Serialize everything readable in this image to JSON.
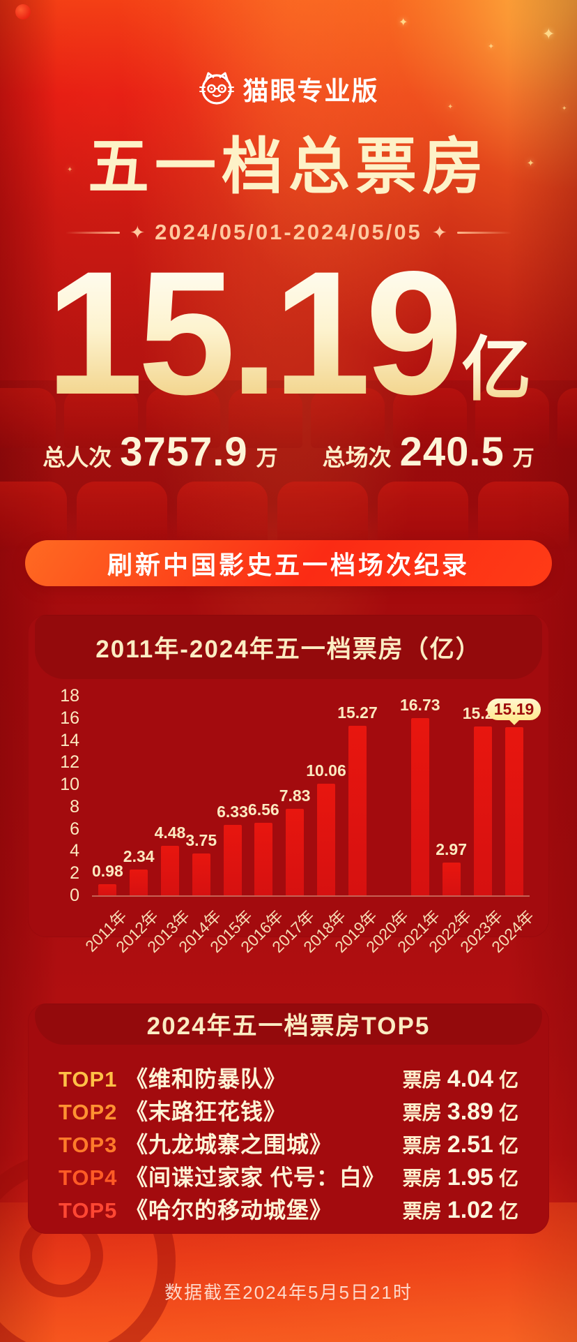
{
  "page": {
    "brand": "猫眼专业版",
    "title": "五一档总票房",
    "date_range": "2024/05/01-2024/05/05",
    "total_box_office": "15.19",
    "total_box_office_unit": "亿",
    "stats": [
      {
        "label": "总人次",
        "value": "3757.9",
        "unit": "万"
      },
      {
        "label": "总场次",
        "value": "240.5",
        "unit": "万"
      }
    ],
    "banner": "刷新中国影史五一档场次纪录",
    "footer": "数据截至2024年5月5日21时"
  },
  "chart_data": {
    "type": "bar",
    "title": "2011年-2024年五一档票房（亿）",
    "categories": [
      "2011年",
      "2012年",
      "2013年",
      "2014年",
      "2015年",
      "2016年",
      "2017年",
      "2018年",
      "2019年",
      "2020年",
      "2021年",
      "2022年",
      "2023年",
      "2024年"
    ],
    "values": [
      0.98,
      2.34,
      4.48,
      3.75,
      6.33,
      6.56,
      7.83,
      10.06,
      15.27,
      null,
      16.73,
      2.97,
      15.21,
      15.19
    ],
    "highlight_index": 13,
    "highlight_label": "15.19",
    "xlabel": "",
    "ylabel": "",
    "ylim": [
      0,
      18
    ],
    "yticks": [
      0,
      2,
      4,
      6,
      8,
      10,
      12,
      14,
      16,
      18
    ],
    "grid": false,
    "legend_position": "none",
    "bar_color": "#e8160f"
  },
  "top5": {
    "title": "2024年五一档票房TOP5",
    "box_office_label": "票房",
    "unit": "亿",
    "rank_colors": [
      "#ffc147",
      "#ff9232",
      "#ff7b2b",
      "#ff5b26",
      "#ff4733"
    ],
    "items": [
      {
        "rank": "TOP1",
        "title": "《维和防暴队》",
        "value": "4.04"
      },
      {
        "rank": "TOP2",
        "title": "《末路狂花钱》",
        "value": "3.89"
      },
      {
        "rank": "TOP3",
        "title": "《九龙城寨之围城》",
        "value": "2.51"
      },
      {
        "rank": "TOP4",
        "title": "《间谍过家家 代号：白》",
        "value": "1.95"
      },
      {
        "rank": "TOP5",
        "title": "《哈尔的移动城堡》",
        "value": "1.02"
      }
    ]
  },
  "colors": {
    "background_red": "#a80c0e",
    "bar_red": "#e8160f",
    "cream_text": "#fdf3cf",
    "peach_date": "#ffc9a0",
    "banner_orange": "#ff5a1e",
    "bubble_yellow": "#ffe98f",
    "white": "#ffffff"
  }
}
